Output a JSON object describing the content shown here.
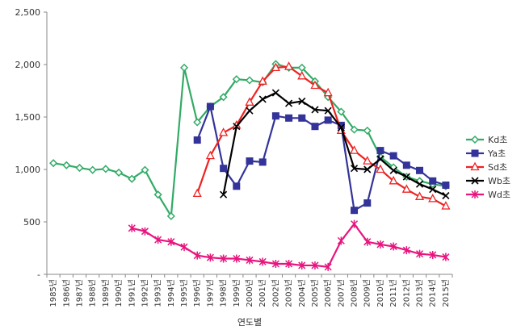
{
  "chart_data": {
    "type": "line",
    "title": "",
    "xlabel": "연도별",
    "ylabel": "",
    "ylim": [
      0,
      2500
    ],
    "yticks": [
      0,
      500,
      1000,
      1500,
      2000,
      2500
    ],
    "ytick_labels": [
      "-",
      "500",
      "1,000",
      "1,500",
      "2,000",
      "2,500"
    ],
    "grid": false,
    "legend_position": "right",
    "x": [
      "1985년",
      "1986년",
      "1987년",
      "1988년",
      "1989년",
      "1990년",
      "1991년",
      "1992년",
      "1993년",
      "1994년",
      "1995년",
      "1996년",
      "1997년",
      "1998년",
      "1999년",
      "2000년",
      "2001년",
      "2002년",
      "2003년",
      "2004년",
      "2005년",
      "2006년",
      "2007년",
      "2008년",
      "2009년",
      "2010년",
      "2011년",
      "2012년",
      "2013년",
      "2014년",
      "2015년"
    ],
    "series": [
      {
        "name": "Kd초",
        "color": "#33aa66",
        "marker": "diamond",
        "values": [
          1060,
          1040,
          1015,
          995,
          1005,
          970,
          910,
          995,
          760,
          555,
          1970,
          1450,
          1600,
          1690,
          1860,
          1850,
          1830,
          2005,
          1970,
          1970,
          1840,
          1690,
          1550,
          1380,
          1370,
          1120,
          1020,
          930,
          890,
          860,
          840
        ]
      },
      {
        "name": "Ya초",
        "color": "#333399",
        "marker": "square",
        "values": [
          null,
          null,
          null,
          null,
          null,
          null,
          null,
          null,
          null,
          null,
          null,
          1280,
          1600,
          1010,
          840,
          1080,
          1070,
          1510,
          1490,
          1490,
          1410,
          1470,
          1420,
          610,
          680,
          1180,
          1130,
          1040,
          990,
          890,
          850
        ]
      },
      {
        "name": "Sd초",
        "color": "#ee2222",
        "marker": "triangle",
        "values": [
          null,
          null,
          null,
          null,
          null,
          null,
          null,
          null,
          null,
          null,
          null,
          770,
          1130,
          1350,
          1420,
          1640,
          1840,
          1970,
          1980,
          1890,
          1800,
          1730,
          1370,
          1180,
          1080,
          1000,
          890,
          810,
          740,
          720,
          650
        ]
      },
      {
        "name": "Wb초",
        "color": "#000000",
        "marker": "x",
        "values": [
          null,
          null,
          null,
          null,
          null,
          null,
          null,
          null,
          null,
          null,
          null,
          null,
          null,
          760,
          1410,
          1560,
          1670,
          1730,
          1630,
          1650,
          1570,
          1560,
          1400,
          1010,
          1000,
          1100,
          990,
          930,
          860,
          810,
          750
        ]
      },
      {
        "name": "Wd초",
        "color": "#e8157e",
        "marker": "star",
        "values": [
          null,
          null,
          null,
          null,
          null,
          null,
          440,
          410,
          330,
          310,
          260,
          180,
          160,
          150,
          150,
          135,
          120,
          100,
          100,
          85,
          85,
          70,
          320,
          480,
          310,
          285,
          265,
          230,
          195,
          185,
          165
        ]
      }
    ]
  }
}
